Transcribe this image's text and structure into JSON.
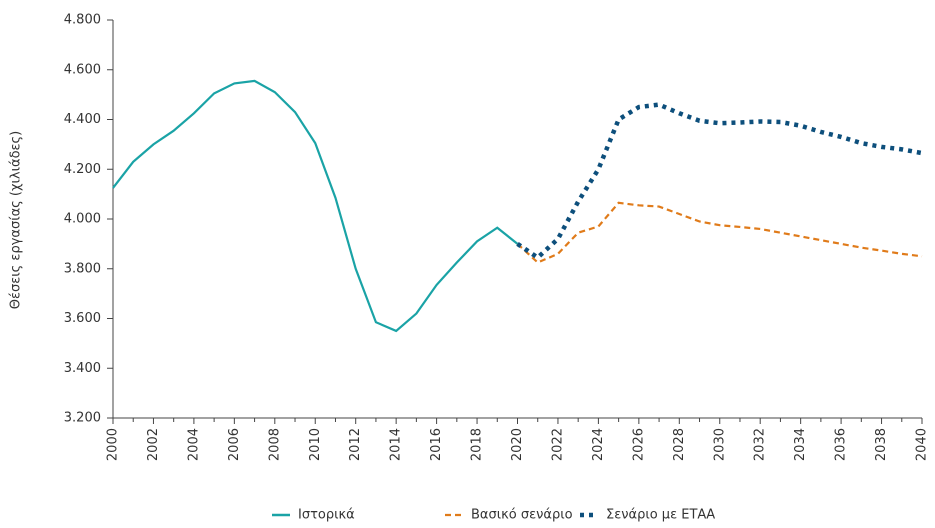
{
  "chart_data": {
    "type": "line",
    "y_label": "Θέσεις εργασίας (χιλιάδες)",
    "x": [
      2000,
      2001,
      2002,
      2003,
      2004,
      2005,
      2006,
      2007,
      2008,
      2009,
      2010,
      2011,
      2012,
      2013,
      2014,
      2015,
      2016,
      2017,
      2018,
      2019,
      2020,
      2021,
      2022,
      2023,
      2024,
      2025,
      2026,
      2027,
      2028,
      2029,
      2030,
      2031,
      2032,
      2033,
      2034,
      2035,
      2036,
      2037,
      2038,
      2039,
      2040
    ],
    "xlim": [
      2000,
      2040
    ],
    "xticks": [
      2000,
      2002,
      2004,
      2006,
      2008,
      2010,
      2012,
      2014,
      2016,
      2018,
      2020,
      2022,
      2024,
      2026,
      2028,
      2030,
      2032,
      2034,
      2036,
      2038,
      2040
    ],
    "ylim": [
      3200,
      4800
    ],
    "yticks": [
      {
        "value": 3200,
        "label": "3.200"
      },
      {
        "value": 3400,
        "label": "3.400"
      },
      {
        "value": 3600,
        "label": "3.600"
      },
      {
        "value": 3800,
        "label": "3.800"
      },
      {
        "value": 4000,
        "label": "4.000"
      },
      {
        "value": 4200,
        "label": "4.200"
      },
      {
        "value": 4400,
        "label": "4.400"
      },
      {
        "value": 4600,
        "label": "4.600"
      },
      {
        "value": 4800,
        "label": "4.800"
      }
    ],
    "grid": false,
    "legend": "bottom",
    "series": [
      {
        "name": "Ιστορικά",
        "color": "#1aa3a6",
        "style": "solid",
        "values": [
          4125,
          4230,
          4300,
          4355,
          4425,
          4505,
          4545,
          4555,
          4510,
          4430,
          4305,
          4085,
          3800,
          3585,
          3550,
          3620,
          3735,
          3825,
          3910,
          3965,
          3900,
          null,
          null,
          null,
          null,
          null,
          null,
          null,
          null,
          null,
          null,
          null,
          null,
          null,
          null,
          null,
          null,
          null,
          null,
          null,
          null
        ]
      },
      {
        "name": "Βασικό σενάριο",
        "color": "#e07b1a",
        "style": "dashed",
        "values": [
          null,
          null,
          null,
          null,
          null,
          null,
          null,
          null,
          null,
          null,
          null,
          null,
          null,
          null,
          null,
          null,
          null,
          null,
          null,
          null,
          3900,
          3825,
          3860,
          3945,
          3970,
          4065,
          4055,
          4050,
          4020,
          3990,
          3975,
          3968,
          3960,
          3945,
          3930,
          3915,
          3900,
          3885,
          3873,
          3860,
          3850
        ]
      },
      {
        "name": "Σενάριο με ΕΤΑΑ",
        "color": "#0d4f7c",
        "style": "dotted",
        "values": [
          null,
          null,
          null,
          null,
          null,
          null,
          null,
          null,
          null,
          null,
          null,
          null,
          null,
          null,
          null,
          null,
          null,
          null,
          null,
          null,
          3900,
          3845,
          3920,
          4070,
          4200,
          4400,
          4450,
          4460,
          4425,
          4395,
          4385,
          4388,
          4392,
          4390,
          4375,
          4350,
          4330,
          4305,
          4290,
          4280,
          4265
        ]
      }
    ]
  }
}
